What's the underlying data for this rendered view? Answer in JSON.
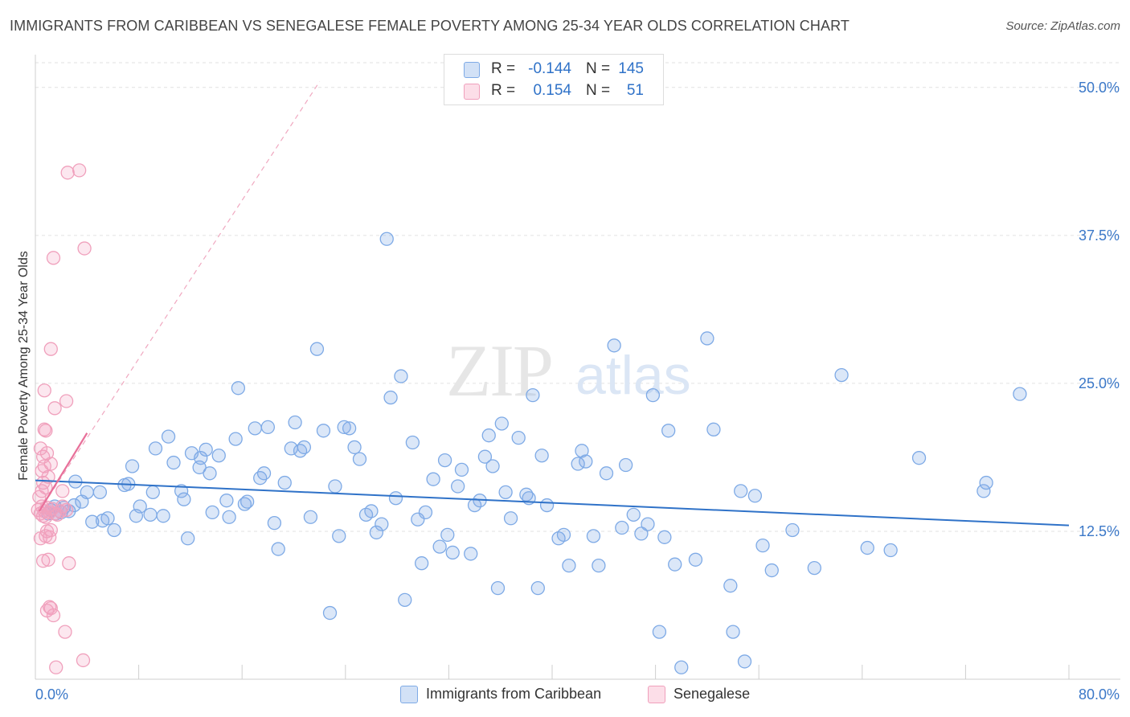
{
  "title": "IMMIGRANTS FROM CARIBBEAN VS SENEGALESE FEMALE POVERTY AMONG 25-34 YEAR OLDS CORRELATION CHART",
  "source": "Source: ZipAtlas.com",
  "watermark": {
    "zip": "ZIP",
    "atlas": "atlas"
  },
  "legend": {
    "rows": [
      {
        "r_label": "R =",
        "r_value": "-0.144",
        "n_label": "N =",
        "n_value": "145"
      },
      {
        "r_label": "R =",
        "r_value": "0.154",
        "n_label": "N =",
        "n_value": "51"
      }
    ]
  },
  "bottom_legend": {
    "series1": "Immigrants from Caribbean",
    "series2": "Senegalese"
  },
  "colors": {
    "blue": "#2f72c8",
    "blue_fill": "rgba(126,170,230,0.28)",
    "blue_stroke": "#7eaae6",
    "pink": "#e8709a",
    "pink_fill": "rgba(245,160,190,0.25)",
    "pink_stroke": "#f0a0bc",
    "grid": "#e2e2e2",
    "axis_label": "#3b78c8"
  },
  "chart_data": {
    "type": "scatter",
    "title": "IMMIGRANTS FROM CARIBBEAN VS SENEGALESE FEMALE POVERTY AMONG 25-34 YEAR OLDS CORRELATION CHART",
    "xlabel": "",
    "ylabel": "Female Poverty Among 25-34 Year Olds",
    "xlim": [
      0,
      80
    ],
    "ylim": [
      0,
      52.5
    ],
    "x_tick_labels": [
      "0.0%",
      "80.0%"
    ],
    "y_ticks": [
      12.5,
      25.0,
      37.5,
      50.0
    ],
    "y_tick_labels": [
      "12.5%",
      "25.0%",
      "37.5%",
      "50.0%"
    ],
    "legend_position": "top-center",
    "series": [
      {
        "name": "Immigrants from Caribbean",
        "R": -0.144,
        "N": 145,
        "trend": {
          "x": [
            0,
            80
          ],
          "y": [
            16.8,
            13.0
          ]
        },
        "points": [
          [
            1.2,
            14.3
          ],
          [
            1.6,
            14.0
          ],
          [
            2.2,
            14.5
          ],
          [
            2.6,
            14.2
          ],
          [
            3.0,
            14.7
          ],
          [
            1.0,
            14.0
          ],
          [
            1.5,
            14.6
          ],
          [
            2.0,
            14.1
          ],
          [
            3.6,
            15.0
          ],
          [
            3.1,
            16.7
          ],
          [
            4.0,
            15.8
          ],
          [
            4.4,
            13.3
          ],
          [
            5.0,
            15.8
          ],
          [
            5.2,
            13.4
          ],
          [
            5.6,
            13.6
          ],
          [
            6.1,
            12.6
          ],
          [
            6.9,
            16.4
          ],
          [
            7.2,
            16.5
          ],
          [
            7.5,
            18.0
          ],
          [
            7.8,
            13.8
          ],
          [
            8.1,
            14.6
          ],
          [
            8.9,
            13.9
          ],
          [
            9.1,
            15.8
          ],
          [
            9.3,
            19.5
          ],
          [
            9.9,
            13.8
          ],
          [
            10.3,
            20.5
          ],
          [
            10.7,
            18.3
          ],
          [
            11.3,
            15.9
          ],
          [
            11.5,
            15.2
          ],
          [
            11.8,
            11.9
          ],
          [
            12.1,
            19.1
          ],
          [
            12.7,
            17.9
          ],
          [
            12.8,
            18.7
          ],
          [
            13.2,
            19.4
          ],
          [
            13.5,
            17.4
          ],
          [
            13.7,
            14.1
          ],
          [
            14.2,
            18.9
          ],
          [
            14.8,
            15.1
          ],
          [
            15.0,
            13.7
          ],
          [
            15.5,
            20.3
          ],
          [
            15.7,
            24.6
          ],
          [
            16.2,
            14.8
          ],
          [
            16.4,
            15.0
          ],
          [
            17.0,
            21.2
          ],
          [
            17.4,
            17.0
          ],
          [
            17.7,
            17.4
          ],
          [
            18.0,
            21.3
          ],
          [
            18.5,
            13.2
          ],
          [
            18.8,
            11.0
          ],
          [
            19.3,
            16.6
          ],
          [
            19.8,
            19.5
          ],
          [
            20.1,
            21.7
          ],
          [
            20.5,
            19.3
          ],
          [
            20.8,
            19.6
          ],
          [
            21.3,
            13.7
          ],
          [
            21.8,
            27.9
          ],
          [
            22.3,
            21.0
          ],
          [
            22.8,
            5.6
          ],
          [
            23.2,
            16.3
          ],
          [
            23.5,
            12.1
          ],
          [
            23.9,
            21.3
          ],
          [
            24.3,
            21.2
          ],
          [
            24.7,
            19.6
          ],
          [
            25.1,
            18.6
          ],
          [
            25.6,
            13.9
          ],
          [
            26.0,
            14.2
          ],
          [
            26.4,
            12.4
          ],
          [
            26.8,
            13.1
          ],
          [
            27.2,
            37.2
          ],
          [
            27.5,
            23.8
          ],
          [
            27.9,
            15.3
          ],
          [
            28.3,
            25.6
          ],
          [
            28.6,
            6.7
          ],
          [
            29.2,
            20.0
          ],
          [
            29.6,
            13.5
          ],
          [
            29.9,
            9.8
          ],
          [
            30.2,
            14.1
          ],
          [
            30.8,
            16.9
          ],
          [
            31.3,
            11.2
          ],
          [
            31.7,
            18.5
          ],
          [
            31.9,
            12.2
          ],
          [
            32.3,
            10.7
          ],
          [
            32.7,
            16.3
          ],
          [
            33.0,
            17.7
          ],
          [
            33.7,
            10.6
          ],
          [
            34.0,
            14.7
          ],
          [
            34.4,
            15.1
          ],
          [
            34.8,
            18.8
          ],
          [
            35.1,
            20.6
          ],
          [
            35.4,
            18.0
          ],
          [
            35.8,
            7.7
          ],
          [
            36.1,
            21.6
          ],
          [
            36.4,
            15.8
          ],
          [
            36.8,
            13.6
          ],
          [
            37.4,
            20.4
          ],
          [
            38.0,
            15.6
          ],
          [
            38.2,
            15.3
          ],
          [
            38.5,
            24.0
          ],
          [
            38.9,
            7.7
          ],
          [
            39.2,
            18.9
          ],
          [
            39.6,
            14.7
          ],
          [
            40.5,
            11.9
          ],
          [
            40.9,
            12.2
          ],
          [
            41.3,
            9.6
          ],
          [
            42.0,
            18.2
          ],
          [
            42.3,
            19.3
          ],
          [
            42.6,
            18.4
          ],
          [
            43.2,
            12.1
          ],
          [
            43.6,
            9.6
          ],
          [
            44.2,
            17.4
          ],
          [
            44.8,
            28.2
          ],
          [
            45.4,
            12.8
          ],
          [
            45.7,
            18.1
          ],
          [
            46.3,
            13.9
          ],
          [
            46.9,
            12.3
          ],
          [
            47.4,
            13.1
          ],
          [
            47.8,
            24.0
          ],
          [
            48.3,
            4.0
          ],
          [
            48.7,
            12.0
          ],
          [
            49.0,
            21.0
          ],
          [
            49.5,
            9.7
          ],
          [
            50.0,
            1.0
          ],
          [
            51.1,
            10.1
          ],
          [
            52.0,
            28.8
          ],
          [
            52.5,
            21.1
          ],
          [
            53.8,
            7.9
          ],
          [
            54.0,
            4.0
          ],
          [
            54.6,
            15.9
          ],
          [
            54.9,
            1.5
          ],
          [
            55.7,
            15.5
          ],
          [
            56.3,
            11.3
          ],
          [
            57.0,
            9.2
          ],
          [
            58.6,
            12.6
          ],
          [
            60.3,
            9.4
          ],
          [
            62.4,
            25.7
          ],
          [
            64.4,
            11.1
          ],
          [
            66.2,
            10.9
          ],
          [
            68.4,
            18.7
          ],
          [
            73.4,
            15.9
          ],
          [
            73.6,
            16.6
          ],
          [
            76.2,
            24.1
          ]
        ]
      },
      {
        "name": "Senegalese",
        "R": 0.154,
        "N": 51,
        "trend": {
          "x": [
            0.3,
            4.0
          ],
          "y": [
            14.2,
            20.8
          ]
        },
        "trend_extended": {
          "x": [
            0.3,
            22.0
          ],
          "y": [
            14.2,
            50.5
          ]
        },
        "points": [
          [
            0.2,
            14.3
          ],
          [
            0.4,
            14.0
          ],
          [
            0.5,
            14.6
          ],
          [
            0.6,
            13.8
          ],
          [
            0.7,
            14.2
          ],
          [
            0.8,
            13.7
          ],
          [
            0.9,
            14.5
          ],
          [
            1.1,
            14.1
          ],
          [
            1.3,
            14.4
          ],
          [
            1.5,
            14.0
          ],
          [
            1.7,
            13.9
          ],
          [
            1.9,
            14.2
          ],
          [
            2.1,
            14.6
          ],
          [
            2.4,
            14.3
          ],
          [
            0.3,
            15.4
          ],
          [
            0.5,
            15.9
          ],
          [
            0.6,
            16.6
          ],
          [
            0.8,
            16.2
          ],
          [
            1.0,
            17.1
          ],
          [
            0.5,
            17.6
          ],
          [
            0.7,
            18.0
          ],
          [
            1.2,
            18.2
          ],
          [
            0.6,
            18.8
          ],
          [
            0.9,
            19.1
          ],
          [
            0.4,
            19.5
          ],
          [
            0.7,
            21.1
          ],
          [
            0.8,
            21.0
          ],
          [
            0.4,
            11.9
          ],
          [
            0.8,
            12.1
          ],
          [
            1.1,
            12.0
          ],
          [
            0.9,
            12.5
          ],
          [
            1.2,
            12.6
          ],
          [
            0.6,
            10.0
          ],
          [
            1.0,
            10.1
          ],
          [
            2.6,
            9.8
          ],
          [
            0.9,
            5.8
          ],
          [
            1.1,
            6.1
          ],
          [
            1.2,
            6.0
          ],
          [
            1.4,
            5.4
          ],
          [
            2.3,
            4.0
          ],
          [
            1.6,
            1.0
          ],
          [
            3.7,
            1.6
          ],
          [
            1.4,
            35.6
          ],
          [
            3.8,
            36.4
          ],
          [
            2.5,
            42.8
          ],
          [
            3.4,
            43.0
          ],
          [
            1.2,
            27.9
          ],
          [
            0.7,
            24.4
          ],
          [
            1.5,
            22.9
          ],
          [
            2.4,
            23.5
          ],
          [
            2.1,
            15.9
          ]
        ]
      }
    ]
  }
}
